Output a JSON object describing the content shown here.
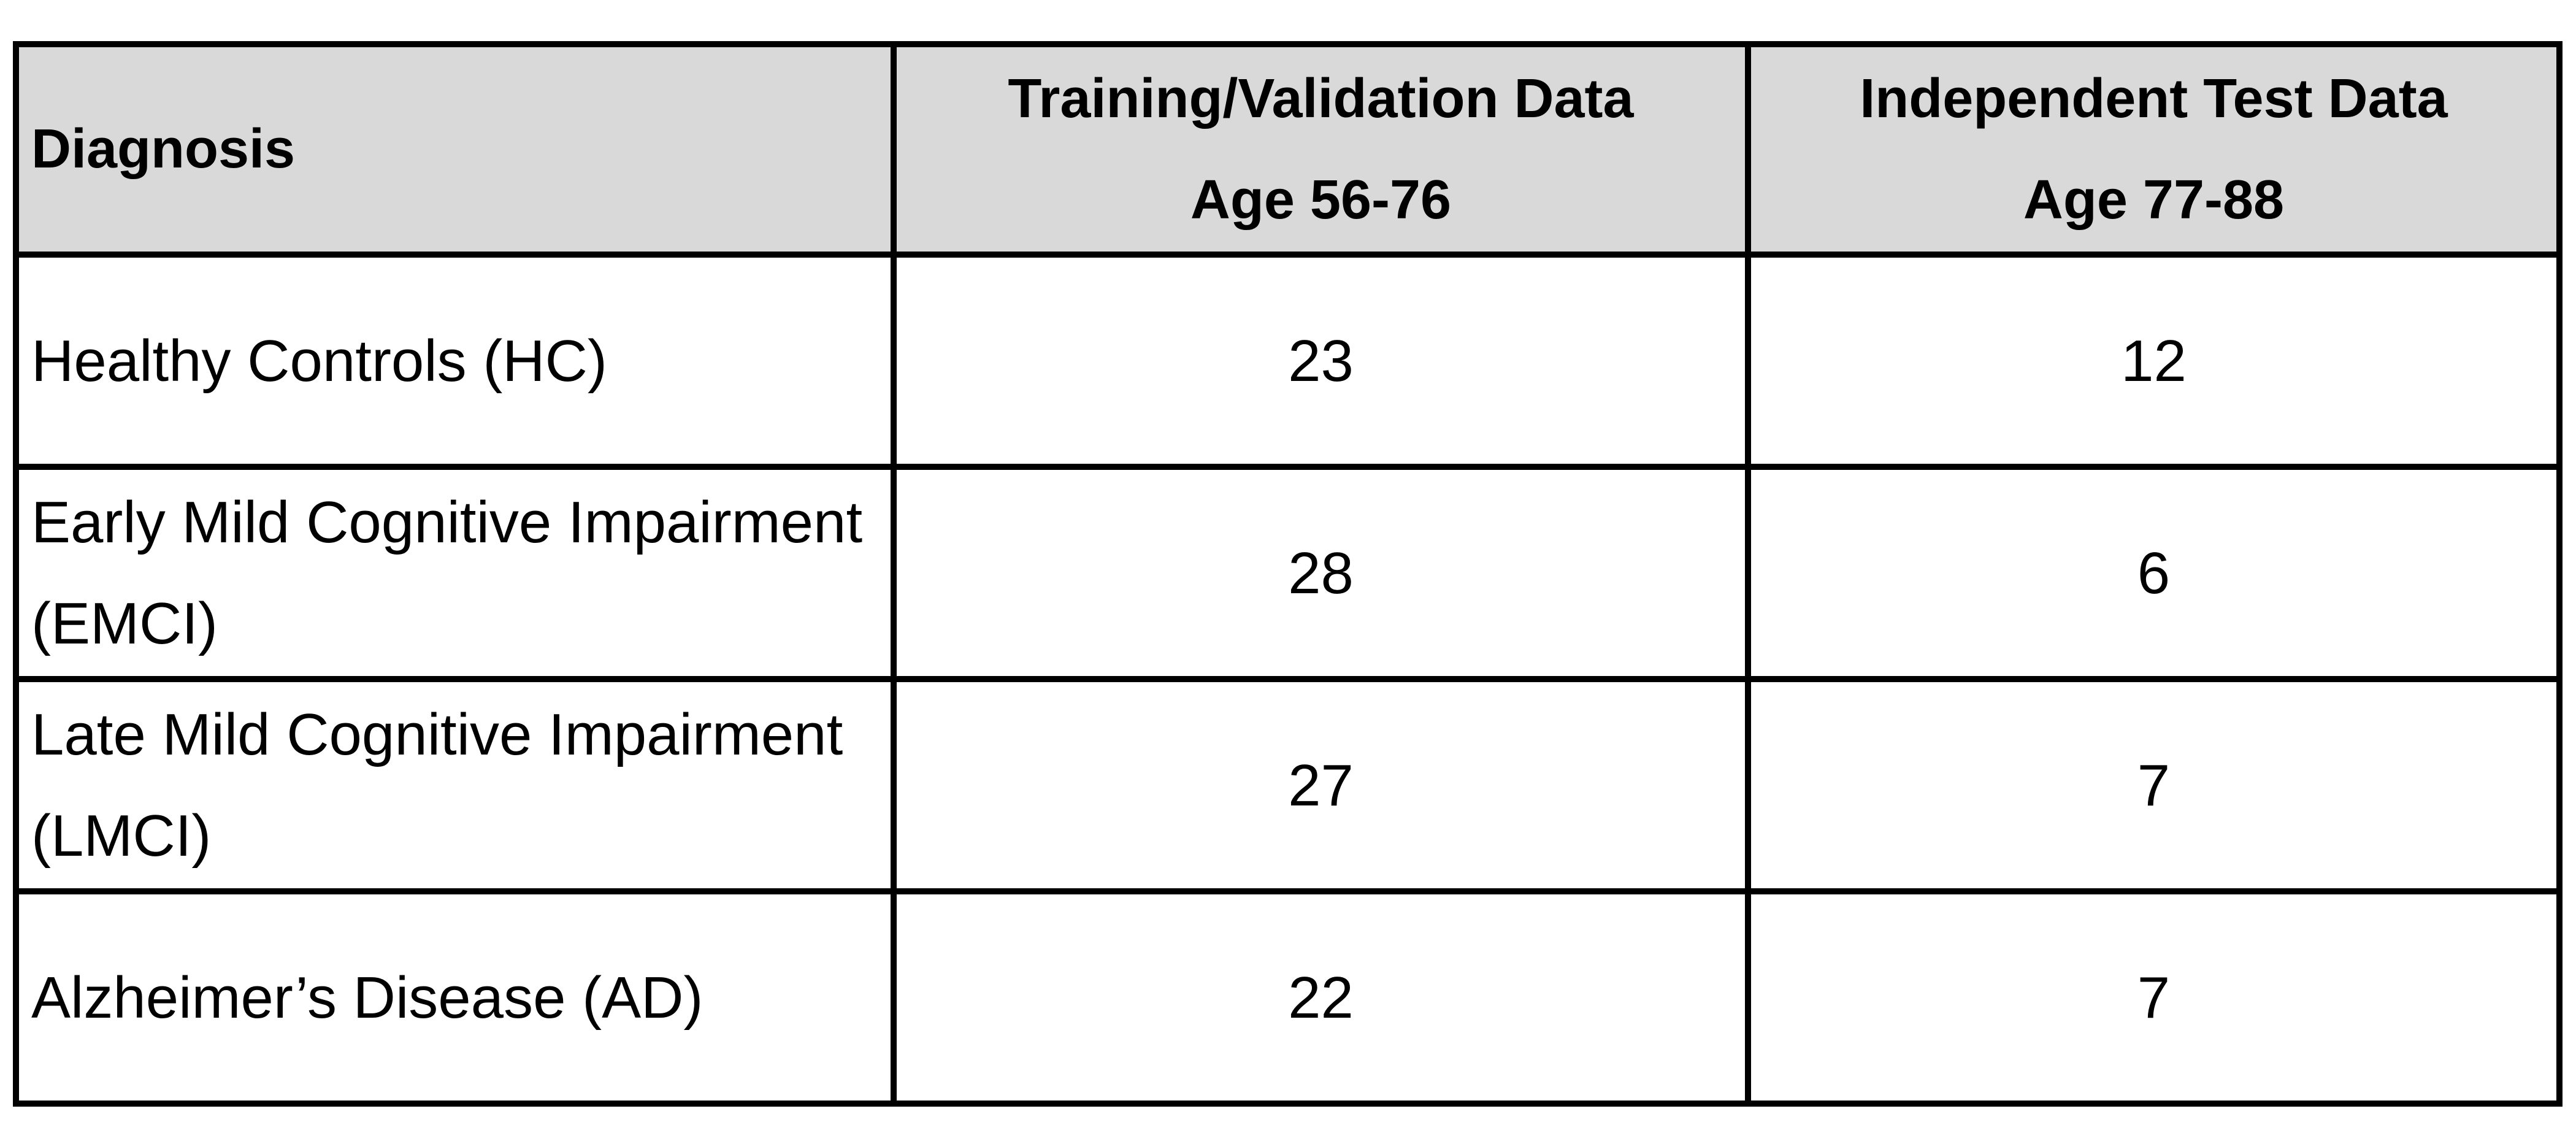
{
  "table": {
    "header": [
      [
        "Diagnosis"
      ],
      [
        "Training/Validation Data",
        "Age 56-76"
      ],
      [
        "Independent Test Data",
        "Age 77-88"
      ]
    ],
    "rows": [
      [
        "Healthy Controls (HC)",
        23,
        12
      ],
      [
        "Early Mild Cognitive Impairment (EMCI)",
        28,
        6
      ],
      [
        "Late Mild Cognitive Impairment (LMCI)",
        27,
        7
      ],
      [
        "Alzheimer’s Disease (AD)",
        22,
        7
      ]
    ]
  }
}
